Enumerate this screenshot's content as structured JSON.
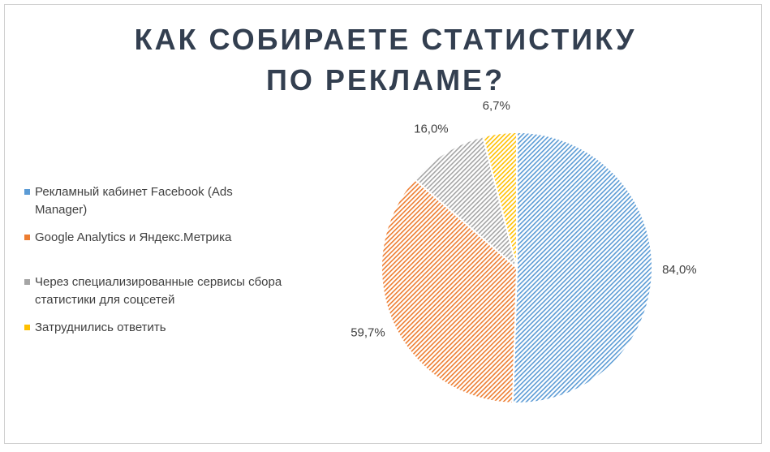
{
  "chart_data": {
    "type": "pie",
    "title": "КАК СОБИРАЕТЕ СТАТИСТИКУ ПО РЕКЛАМЕ?",
    "categories": [
      "Рекламный кабинет Facebook (Ads Manager)",
      "Google Analytics и Яндекс.Метрика",
      "Через специализированные сервисы сбора статистики для соцсетей",
      "Затруднились ответить"
    ],
    "values": [
      84.0,
      59.7,
      16.0,
      6.7
    ],
    "value_labels": [
      "84,0%",
      "59,7%",
      "16,0%",
      "6,7%"
    ],
    "colors": [
      "#5b9bd5",
      "#ed7d31",
      "#a5a5a5",
      "#ffc000"
    ],
    "legend": "left"
  }
}
